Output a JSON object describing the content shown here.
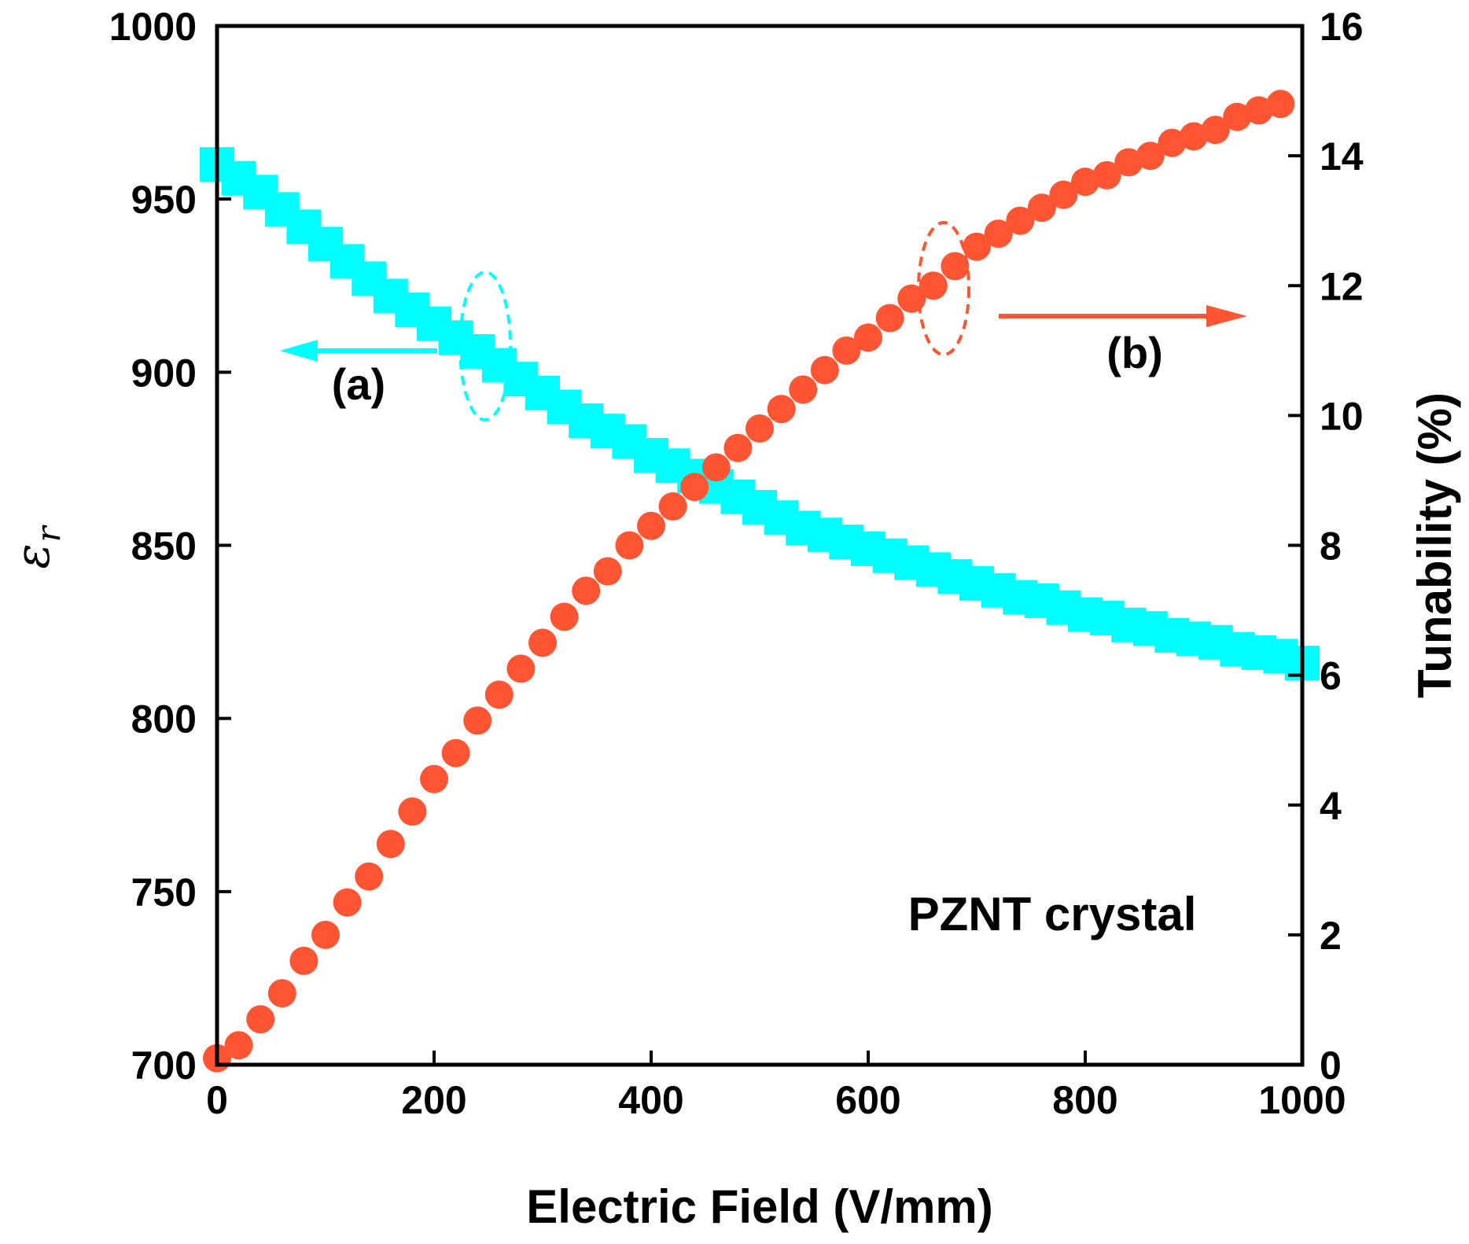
{
  "chart_data": {
    "type": "scatter",
    "title": "",
    "xlabel": "Electric Field (V/mm)",
    "ylabel_left": "ε",
    "ylabel_left_subscript": "r",
    "ylabel_right": "Tunability (%)",
    "xlim": [
      0,
      1000
    ],
    "ylim_left": [
      700,
      1000
    ],
    "ylim_right": [
      0,
      16
    ],
    "x_ticks": [
      "0",
      "200",
      "400",
      "600",
      "800",
      "1000"
    ],
    "y_left_ticks": [
      "700",
      "750",
      "800",
      "850",
      "900",
      "950",
      "1000"
    ],
    "y_right_ticks": [
      "0",
      "2",
      "4",
      "6",
      "8",
      "10",
      "12",
      "14",
      "16"
    ],
    "annotations": {
      "label_a": "(a)",
      "label_b": "(b)",
      "sample": "PZNT crystal"
    },
    "colors": {
      "series_a": "#00ffff",
      "series_b": "#ff5533",
      "axis": "#000000"
    },
    "series": [
      {
        "name": "(a) εr",
        "axis": "left",
        "marker": "square",
        "x": [
          0,
          20,
          40,
          60,
          80,
          100,
          120,
          140,
          160,
          180,
          200,
          220,
          240,
          260,
          280,
          300,
          320,
          340,
          360,
          380,
          400,
          420,
          440,
          460,
          480,
          500,
          520,
          540,
          560,
          580,
          600,
          620,
          640,
          660,
          680,
          700,
          720,
          740,
          760,
          780,
          800,
          820,
          840,
          860,
          880,
          900,
          920,
          940,
          960,
          980,
          1000
        ],
        "values": [
          960,
          956,
          952,
          947,
          942,
          937,
          932,
          927,
          922,
          918,
          914,
          910,
          906,
          902,
          898,
          894,
          890,
          886,
          883,
          880,
          876,
          873,
          870,
          867,
          864,
          861,
          858,
          855,
          853,
          851,
          849,
          847,
          845,
          843,
          841,
          839,
          837,
          835,
          834,
          832,
          830,
          829,
          827,
          826,
          824,
          823,
          822,
          820,
          819,
          818,
          816
        ]
      },
      {
        "name": "(b) Tunability",
        "axis": "right",
        "marker": "circle",
        "x": [
          0,
          20,
          40,
          60,
          80,
          100,
          120,
          140,
          160,
          180,
          200,
          220,
          240,
          260,
          280,
          300,
          320,
          340,
          360,
          380,
          400,
          420,
          440,
          460,
          480,
          500,
          520,
          540,
          560,
          580,
          600,
          620,
          640,
          660,
          680,
          700,
          720,
          740,
          760,
          780,
          800,
          820,
          840,
          860,
          880,
          900,
          920,
          940,
          960,
          980
        ],
        "values": [
          0.1,
          0.3,
          0.7,
          1.1,
          1.6,
          2.0,
          2.5,
          2.9,
          3.4,
          3.9,
          4.4,
          4.8,
          5.3,
          5.7,
          6.1,
          6.5,
          6.9,
          7.3,
          7.6,
          8.0,
          8.3,
          8.6,
          8.9,
          9.2,
          9.5,
          9.8,
          10.1,
          10.4,
          10.7,
          11.0,
          11.2,
          11.5,
          11.8,
          12.0,
          12.3,
          12.6,
          12.8,
          13.0,
          13.2,
          13.4,
          13.6,
          13.7,
          13.9,
          14.0,
          14.2,
          14.3,
          14.4,
          14.6,
          14.7,
          14.8
        ]
      }
    ]
  }
}
